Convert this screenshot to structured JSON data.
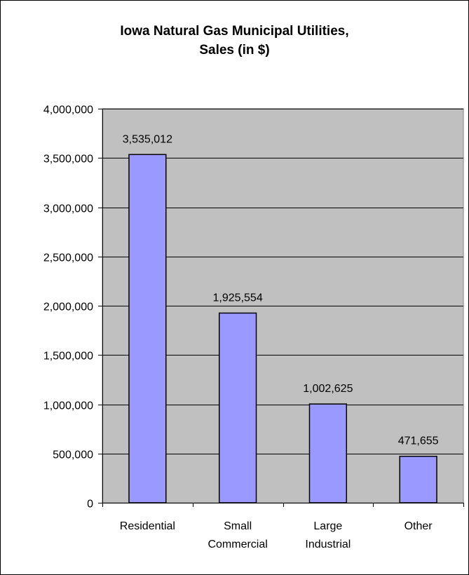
{
  "chart_data": {
    "type": "bar",
    "title_lines": [
      "Iowa Natural Gas Municipal Utilities,",
      "Sales (in $)"
    ],
    "categories": [
      [
        "Residential"
      ],
      [
        "Small",
        "Commercial"
      ],
      [
        "Large",
        "Industrial"
      ],
      [
        "Other"
      ]
    ],
    "values": [
      3535012,
      1925554,
      1002625,
      471655
    ],
    "value_labels": [
      "3,535,012",
      "1,925,554",
      "1,002,625",
      "471,655"
    ],
    "ylim": [
      0,
      4000000
    ],
    "ytick_values": [
      0,
      500000,
      1000000,
      1500000,
      2000000,
      2500000,
      3000000,
      3500000,
      4000000
    ],
    "ytick_labels": [
      "0",
      "500,000",
      "1,000,000",
      "1,500,000",
      "2,000,000",
      "2,500,000",
      "3,000,000",
      "3,500,000",
      "4,000,000"
    ],
    "grid": true,
    "legend": "none",
    "colors": {
      "bar_fill": "#9999ff",
      "bar_stroke": "#000000",
      "plot_background": "#c0c0c0",
      "gridline": "#000000"
    }
  }
}
